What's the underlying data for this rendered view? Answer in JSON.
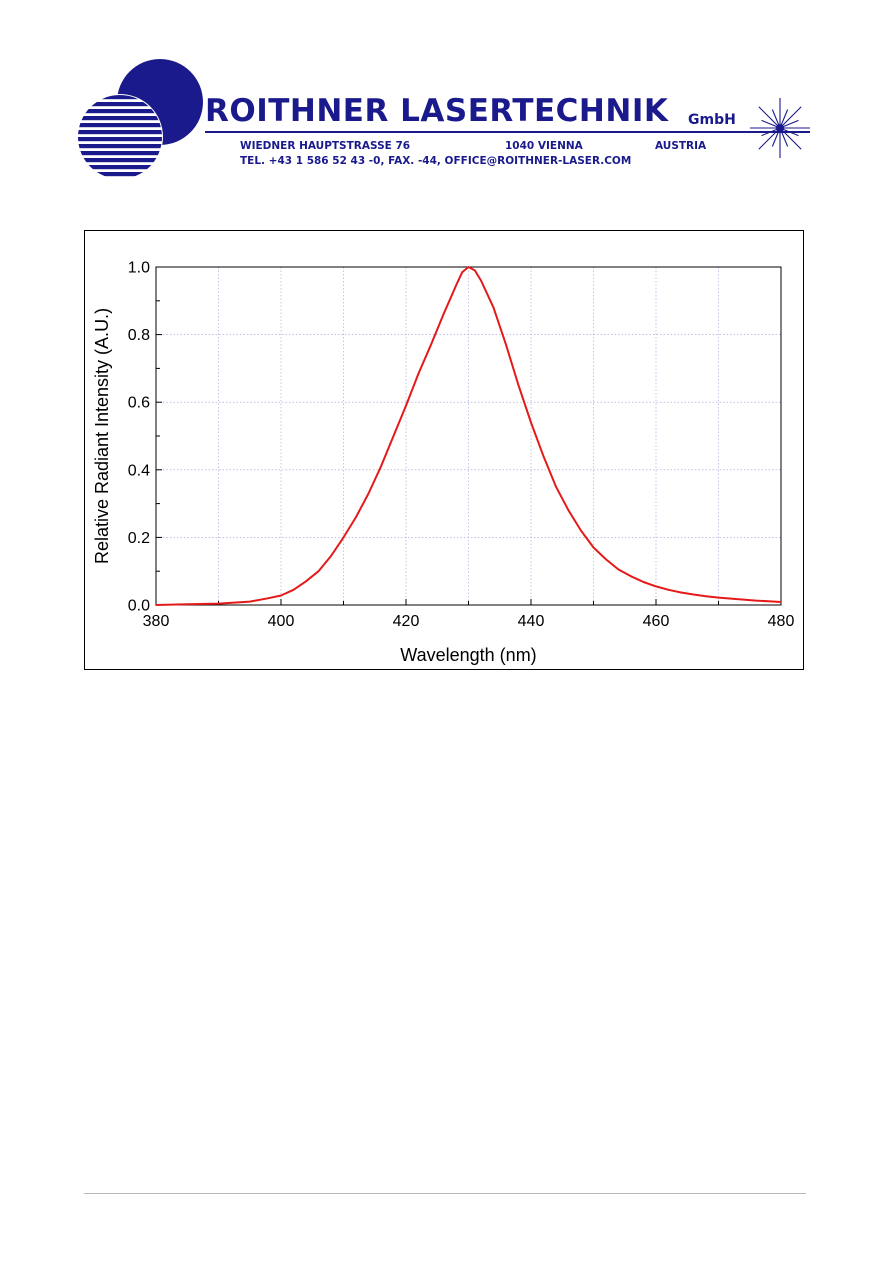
{
  "header": {
    "brand_name": "ROITHNER LASERTECHNIK",
    "brand_suffix": "GmbH",
    "street": "WIEDNER HAUPTSTRASSE 76",
    "city": "1040 VIENNA",
    "country": "AUSTRIA",
    "contact": "TEL. +43 1 586 52 43 -0, FAX. -44, OFFICE@ROITHNER-LASER.COM",
    "brand_color": "#1a1a8c"
  },
  "chart_data": {
    "type": "line",
    "title": "",
    "xlabel": "Wavelength (nm)",
    "ylabel": "Relative Radiant Intensity (A.U.)",
    "xlim": [
      380,
      480
    ],
    "ylim": [
      0.0,
      1.0
    ],
    "xticks": [
      "380",
      "400",
      "420",
      "440",
      "460",
      "480"
    ],
    "yticks": [
      "0.0",
      "0.2",
      "0.4",
      "0.6",
      "0.8",
      "1.0"
    ],
    "grid": true,
    "legend": "none",
    "series": [
      {
        "color": "#e41a1a",
        "x": [
          380,
          385,
          390,
          395,
          398,
          400,
          402,
          404,
          406,
          408,
          410,
          412,
          414,
          416,
          418,
          420,
          422,
          424,
          426,
          428,
          429,
          430,
          431,
          432,
          434,
          436,
          438,
          440,
          442,
          444,
          446,
          448,
          450,
          452,
          454,
          456,
          458,
          460,
          462,
          464,
          466,
          468,
          470,
          472,
          474,
          476,
          478,
          480
        ],
        "y": [
          0.0,
          0.002,
          0.004,
          0.01,
          0.02,
          0.028,
          0.045,
          0.07,
          0.1,
          0.145,
          0.2,
          0.26,
          0.33,
          0.41,
          0.5,
          0.59,
          0.685,
          0.77,
          0.86,
          0.945,
          0.985,
          1.0,
          0.99,
          0.96,
          0.88,
          0.77,
          0.65,
          0.54,
          0.44,
          0.35,
          0.28,
          0.22,
          0.17,
          0.135,
          0.105,
          0.085,
          0.068,
          0.055,
          0.045,
          0.037,
          0.031,
          0.026,
          0.022,
          0.019,
          0.016,
          0.013,
          0.011,
          0.009
        ]
      }
    ]
  }
}
